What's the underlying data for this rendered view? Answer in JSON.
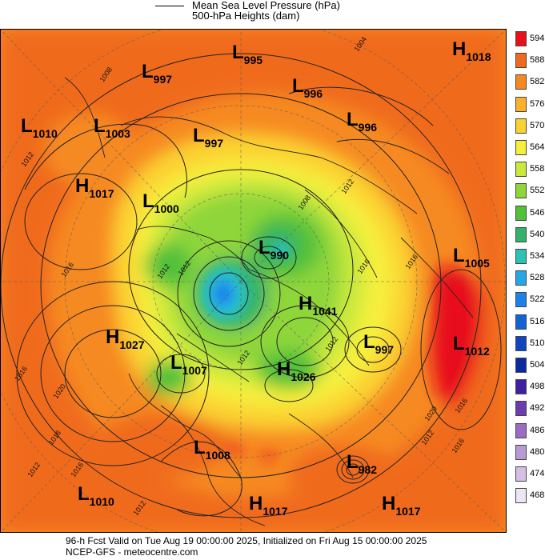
{
  "legend": {
    "line1": "Mean Sea Level Pressure (hPa)",
    "line2": "500-hPa Heights (dam)"
  },
  "colorbar": {
    "levels": [
      {
        "value": "594",
        "color": "#e8101a"
      },
      {
        "value": "588",
        "color": "#f06a1e"
      },
      {
        "value": "582",
        "color": "#f68a22"
      },
      {
        "value": "576",
        "color": "#f9b22a"
      },
      {
        "value": "570",
        "color": "#fbd230"
      },
      {
        "value": "564",
        "color": "#f6ef3c"
      },
      {
        "value": "558",
        "color": "#c9e93e"
      },
      {
        "value": "552",
        "color": "#8fd63a"
      },
      {
        "value": "546",
        "color": "#52c13a"
      },
      {
        "value": "540",
        "color": "#33b26a"
      },
      {
        "value": "534",
        "color": "#2cc3b5"
      },
      {
        "value": "528",
        "color": "#22a8e8"
      },
      {
        "value": "522",
        "color": "#1a82e8"
      },
      {
        "value": "516",
        "color": "#1463d6"
      },
      {
        "value": "510",
        "color": "#0f46c0"
      },
      {
        "value": "504",
        "color": "#0b2aa0"
      },
      {
        "value": "498",
        "color": "#4020a0"
      },
      {
        "value": "492",
        "color": "#6c3cae"
      },
      {
        "value": "486",
        "color": "#9a6cc4"
      },
      {
        "value": "480",
        "color": "#b99ad6"
      },
      {
        "value": "474",
        "color": "#d4c0e6"
      },
      {
        "value": "468",
        "color": "#ede4f4"
      }
    ]
  },
  "pressure_centers": [
    {
      "letter": "L",
      "value": "995"
    },
    {
      "letter": "H",
      "value": "1018"
    },
    {
      "letter": "L",
      "value": "997"
    },
    {
      "letter": "L",
      "value": "996"
    },
    {
      "letter": "L",
      "value": "1010"
    },
    {
      "letter": "L",
      "value": "1003"
    },
    {
      "letter": "L",
      "value": "997"
    },
    {
      "letter": "L",
      "value": "996"
    },
    {
      "letter": "H",
      "value": "1017"
    },
    {
      "letter": "L",
      "value": "1000"
    },
    {
      "letter": "L",
      "value": "990"
    },
    {
      "letter": "L",
      "value": "1005"
    },
    {
      "letter": "H",
      "value": "1041"
    },
    {
      "letter": "H",
      "value": "1027"
    },
    {
      "letter": "L",
      "value": "997"
    },
    {
      "letter": "L",
      "value": "1012"
    },
    {
      "letter": "L",
      "value": "1007"
    },
    {
      "letter": "H",
      "value": "1026"
    },
    {
      "letter": "L",
      "value": "1008"
    },
    {
      "letter": "L",
      "value": "982"
    },
    {
      "letter": "L",
      "value": "1010"
    },
    {
      "letter": "H",
      "value": "1017"
    },
    {
      "letter": "H",
      "value": "1017"
    }
  ],
  "isobar_labels": [
    "1004",
    "1008",
    "1012",
    "1012",
    "1008",
    "1016",
    "1012",
    "1016",
    "1016",
    "1012",
    "1016",
    "1020",
    "1016",
    "1020",
    "1016",
    "1012",
    "1016",
    "1012",
    "1016",
    "1012",
    "1012",
    "1012"
  ],
  "footer": {
    "line1": "96-h Fcst Valid on Tue Aug 19 00:00:00 2025, Initialized on Fri Aug 15 00:00:00 2025",
    "line2": "NCEP-GFS  - meteocentre.com"
  }
}
